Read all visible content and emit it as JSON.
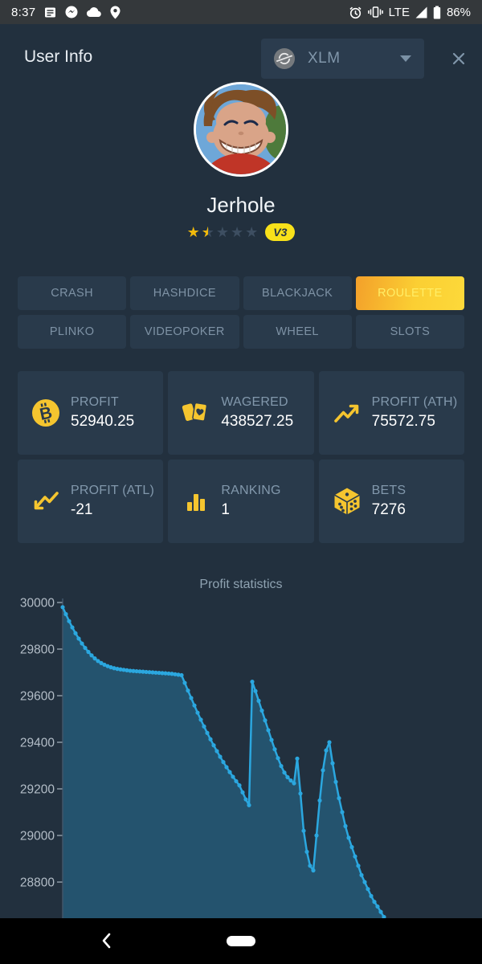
{
  "status_bar": {
    "time": "8:37",
    "network": "LTE",
    "battery_percent": "86%"
  },
  "header": {
    "title": "User Info",
    "currency_code": "XLM"
  },
  "profile": {
    "username": "Jerhole",
    "rating": 1.5,
    "rating_max": 5,
    "level_badge": "V3"
  },
  "tabs": {
    "items": [
      {
        "label": "CRASH",
        "active": false
      },
      {
        "label": "HASHDICE",
        "active": false
      },
      {
        "label": "BLACKJACK",
        "active": false
      },
      {
        "label": "ROULETTE",
        "active": true
      },
      {
        "label": "PLINKO",
        "active": false
      },
      {
        "label": "VIDEOPOKER",
        "active": false
      },
      {
        "label": "WHEEL",
        "active": false
      },
      {
        "label": "SLOTS",
        "active": false
      }
    ]
  },
  "stats": {
    "cards": [
      {
        "icon": "bitcoin-icon",
        "label": "PROFIT",
        "value": "52940.25"
      },
      {
        "icon": "cards-icon",
        "label": "WAGERED",
        "value": "438527.25"
      },
      {
        "icon": "trend-up-icon",
        "label": "PROFIT (ATH)",
        "value": "75572.75"
      },
      {
        "icon": "trend-down-icon",
        "label": "PROFIT (ATL)",
        "value": "-21"
      },
      {
        "icon": "ranking-bars-icon",
        "label": "RANKING",
        "value": "1"
      },
      {
        "icon": "dice-icon",
        "label": "BETS",
        "value": "7276"
      }
    ]
  },
  "chart_data": {
    "type": "area",
    "title": "Profit statistics",
    "xlabel": "",
    "ylabel": "",
    "yticks": [
      30000,
      29800,
      29600,
      29400,
      29200,
      29000,
      28800
    ],
    "ylim_visible": [
      28650,
      30050
    ],
    "grid": "off",
    "legend": "none",
    "marker": "circle",
    "line_color": "#2ba7df",
    "fill_color": "rgba(43,167,223,0.30)",
    "values": [
      29980,
      29950,
      29920,
      29893,
      29868,
      29845,
      29824,
      29805,
      29788,
      29773,
      29760,
      29749,
      29740,
      29733,
      29727,
      29722,
      29718,
      29715,
      29713,
      29711,
      29709,
      29707,
      29706,
      29705,
      29704,
      29703,
      29702,
      29701,
      29700,
      29699,
      29698,
      29697,
      29696,
      29695,
      29694,
      29692,
      29690,
      29688,
      29655,
      29622,
      29590,
      29558,
      29527,
      29497,
      29468,
      29440,
      29413,
      29387,
      29362,
      29338,
      29315,
      29293,
      29272,
      29252,
      29233,
      29215,
      29185,
      29155,
      29130,
      29660,
      29620,
      29578,
      29536,
      29494,
      29452,
      29410,
      29370,
      29332,
      29298,
      29270,
      29250,
      29236,
      29224,
      29330,
      29180,
      29020,
      28930,
      28870,
      28850,
      29000,
      29150,
      29280,
      29365,
      29400,
      29310,
      29230,
      29160,
      29100,
      29040,
      28990,
      28950,
      28910,
      28870,
      28830,
      28800,
      28770,
      28740,
      28715,
      28695,
      28672,
      28650
    ]
  },
  "colors": {
    "accent_yellow": "#f5c52f",
    "page_bg": "#22303e",
    "card_bg": "#293a4b",
    "active_tab_gradient": [
      "#f3a02a",
      "#fdd93a"
    ],
    "chart_line": "#2ba7df"
  }
}
